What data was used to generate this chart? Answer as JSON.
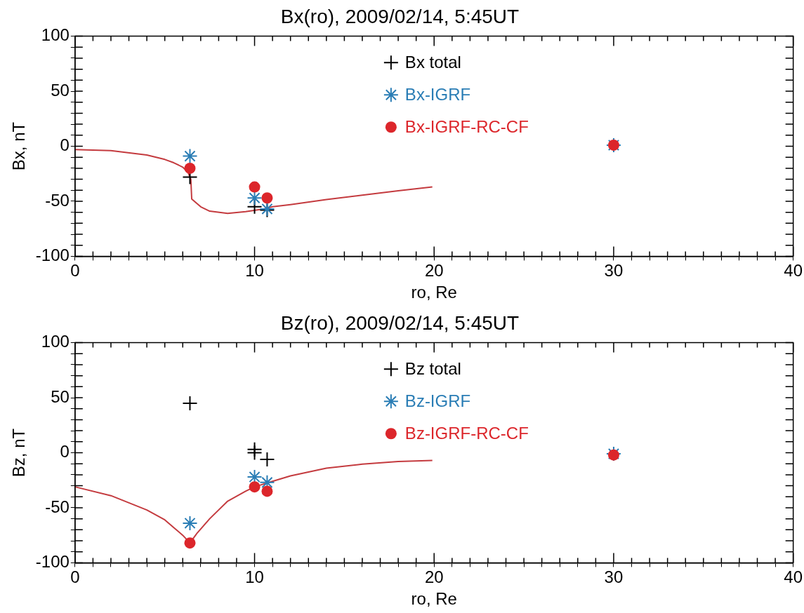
{
  "chart_data": [
    {
      "type": "scatter",
      "title": "Bx(ro), 2009/02/14, 5:45UT",
      "xlabel": "ro, Re",
      "ylabel": "Bx, nT",
      "xlim": [
        0,
        40
      ],
      "ylim": [
        -100,
        100
      ],
      "xticks": [
        0,
        {
          "value": 1,
          "label": null
        },
        {
          "value": 2,
          "label": null
        },
        {
          "value": 3,
          "label": null
        },
        {
          "value": 4,
          "label": null
        },
        {
          "value": 5,
          "label": null
        },
        {
          "value": 6,
          "label": null
        },
        {
          "value": 7,
          "label": null
        },
        {
          "value": 8,
          "label": null
        },
        {
          "value": 9,
          "label": null
        },
        10,
        {
          "value": 11,
          "label": null
        },
        {
          "value": 12,
          "label": null
        },
        {
          "value": 13,
          "label": null
        },
        {
          "value": 14,
          "label": null
        },
        {
          "value": 15,
          "label": null
        },
        {
          "value": 16,
          "label": null
        },
        {
          "value": 17,
          "label": null
        },
        {
          "value": 18,
          "label": null
        },
        {
          "value": 19,
          "label": null
        },
        20,
        {
          "value": 21,
          "label": null
        },
        {
          "value": 22,
          "label": null
        },
        {
          "value": 23,
          "label": null
        },
        {
          "value": 24,
          "label": null
        },
        {
          "value": 25,
          "label": null
        },
        {
          "value": 26,
          "label": null
        },
        {
          "value": 27,
          "label": null
        },
        {
          "value": 28,
          "label": null
        },
        {
          "value": 29,
          "label": null
        },
        30,
        {
          "value": 31,
          "label": null
        },
        {
          "value": 32,
          "label": null
        },
        {
          "value": 33,
          "label": null
        },
        {
          "value": 34,
          "label": null
        },
        {
          "value": 35,
          "label": null
        },
        {
          "value": 36,
          "label": null
        },
        {
          "value": 37,
          "label": null
        },
        {
          "value": 38,
          "label": null
        },
        {
          "value": 39,
          "label": null
        },
        40
      ],
      "yticks": [
        -100,
        {
          "value": -90,
          "label": null
        },
        {
          "value": -80,
          "label": null
        },
        {
          "value": -70,
          "label": null
        },
        {
          "value": -60,
          "label": null
        },
        -50,
        {
          "value": -40,
          "label": null
        },
        {
          "value": -30,
          "label": null
        },
        {
          "value": -20,
          "label": null
        },
        {
          "value": -10,
          "label": null
        },
        0,
        {
          "value": 10,
          "label": null
        },
        {
          "value": 20,
          "label": null
        },
        {
          "value": 30,
          "label": null
        },
        {
          "value": 40,
          "label": null
        },
        50,
        {
          "value": 60,
          "label": null
        },
        {
          "value": 70,
          "label": null
        },
        {
          "value": 80,
          "label": null
        },
        {
          "value": 90,
          "label": null
        },
        100
      ],
      "grid": false,
      "legend": "top",
      "series": [
        {
          "name": "Bx total",
          "color": "#000000",
          "marker": "cross",
          "x": [
            6.4,
            10,
            10.7
          ],
          "values": [
            -28,
            -55,
            -58
          ]
        },
        {
          "name": "Bx-IGRF",
          "color": "#2a7db5",
          "x": [
            6.4,
            10,
            10.7,
            30
          ],
          "values": [
            -9,
            -47,
            -57,
            1
          ]
        },
        {
          "name": "Bx-IGRF-RC-CF",
          "color": "#dc262b",
          "marker": "circle",
          "x": [
            6.4,
            10,
            10.7,
            30
          ],
          "values": [
            -20,
            -37,
            -47,
            1
          ]
        },
        {
          "type": "line",
          "color": "#c43b3f",
          "marker": "none",
          "x": [
            0,
            2,
            4,
            5,
            5.5,
            6,
            6.3,
            6.45,
            6.5,
            7,
            7.5,
            8.5,
            9.5,
            10.5,
            11,
            12,
            14,
            16,
            18,
            19.9
          ],
          "values": [
            -3,
            -4,
            -8,
            -12,
            -15,
            -19,
            -24,
            -30,
            -48,
            -55,
            -59,
            -61,
            -59.5,
            -57,
            -55,
            -53,
            -48.5,
            -44.5,
            -40.5,
            -37
          ]
        }
      ]
    },
    {
      "type": "scatter",
      "title": "Bz(ro), 2009/02/14, 5:45UT",
      "xlabel": "ro, Re",
      "ylabel": "Bz, nT",
      "xlim": [
        0,
        40
      ],
      "ylim": [
        -100,
        100
      ],
      "xticks": [
        0,
        {
          "value": 1,
          "label": null
        },
        {
          "value": 2,
          "label": null
        },
        {
          "value": 3,
          "label": null
        },
        {
          "value": 4,
          "label": null
        },
        {
          "value": 5,
          "label": null
        },
        {
          "value": 6,
          "label": null
        },
        {
          "value": 7,
          "label": null
        },
        {
          "value": 8,
          "label": null
        },
        {
          "value": 9,
          "label": null
        },
        10,
        {
          "value": 11,
          "label": null
        },
        {
          "value": 12,
          "label": null
        },
        {
          "value": 13,
          "label": null
        },
        {
          "value": 14,
          "label": null
        },
        {
          "value": 15,
          "label": null
        },
        {
          "value": 16,
          "label": null
        },
        {
          "value": 17,
          "label": null
        },
        {
          "value": 18,
          "label": null
        },
        {
          "value": 19,
          "label": null
        },
        20,
        {
          "value": 21,
          "label": null
        },
        {
          "value": 22,
          "label": null
        },
        {
          "value": 23,
          "label": null
        },
        {
          "value": 24,
          "label": null
        },
        {
          "value": 25,
          "label": null
        },
        {
          "value": 26,
          "label": null
        },
        {
          "value": 27,
          "label": null
        },
        {
          "value": 28,
          "label": null
        },
        {
          "value": 29,
          "label": null
        },
        30,
        {
          "value": 31,
          "label": null
        },
        {
          "value": 32,
          "label": null
        },
        {
          "value": 33,
          "label": null
        },
        {
          "value": 34,
          "label": null
        },
        {
          "value": 35,
          "label": null
        },
        {
          "value": 36,
          "label": null
        },
        {
          "value": 37,
          "label": null
        },
        {
          "value": 38,
          "label": null
        },
        {
          "value": 39,
          "label": null
        },
        40
      ],
      "yticks": [
        -100,
        {
          "value": -90,
          "label": null
        },
        {
          "value": -80,
          "label": null
        },
        {
          "value": -70,
          "label": null
        },
        {
          "value": -60,
          "label": null
        },
        -50,
        {
          "value": -40,
          "label": null
        },
        {
          "value": -30,
          "label": null
        },
        {
          "value": -20,
          "label": null
        },
        {
          "value": -10,
          "label": null
        },
        0,
        {
          "value": 10,
          "label": null
        },
        {
          "value": 20,
          "label": null
        },
        {
          "value": 30,
          "label": null
        },
        {
          "value": 40,
          "label": null
        },
        50,
        {
          "value": 60,
          "label": null
        },
        {
          "value": 70,
          "label": null
        },
        {
          "value": 80,
          "label": null
        },
        {
          "value": 90,
          "label": null
        },
        100
      ],
      "grid": false,
      "legend": "top",
      "series": [
        {
          "name": "Bz total",
          "color": "#000000",
          "marker": "cross",
          "x": [
            6.4,
            10,
            10,
            10.7
          ],
          "values": [
            45,
            3,
            0,
            -6
          ]
        },
        {
          "name": "Bz-IGRF",
          "color": "#2a7db5",
          "x": [
            6.4,
            10,
            10.7,
            30
          ],
          "values": [
            -64,
            -22,
            -27,
            -1
          ]
        },
        {
          "name": "Bz-IGRF-RC-CF",
          "color": "#dc262b",
          "marker": "circle",
          "x": [
            6.4,
            10,
            10.7,
            30
          ],
          "values": [
            -82,
            -31,
            -35,
            -2
          ]
        },
        {
          "type": "line",
          "color": "#c43b3f",
          "marker": "none",
          "x": [
            0,
            2,
            4,
            5,
            5.5,
            6,
            6.4,
            6.8,
            7.5,
            8.5,
            9.5,
            10,
            11,
            12,
            14,
            16,
            18,
            19.9
          ],
          "values": [
            -31,
            -39,
            -52,
            -61,
            -68,
            -75,
            -82,
            -73,
            -60,
            -44,
            -35,
            -31,
            -26,
            -21,
            -14,
            -10.4,
            -8,
            -7
          ]
        }
      ]
    }
  ]
}
